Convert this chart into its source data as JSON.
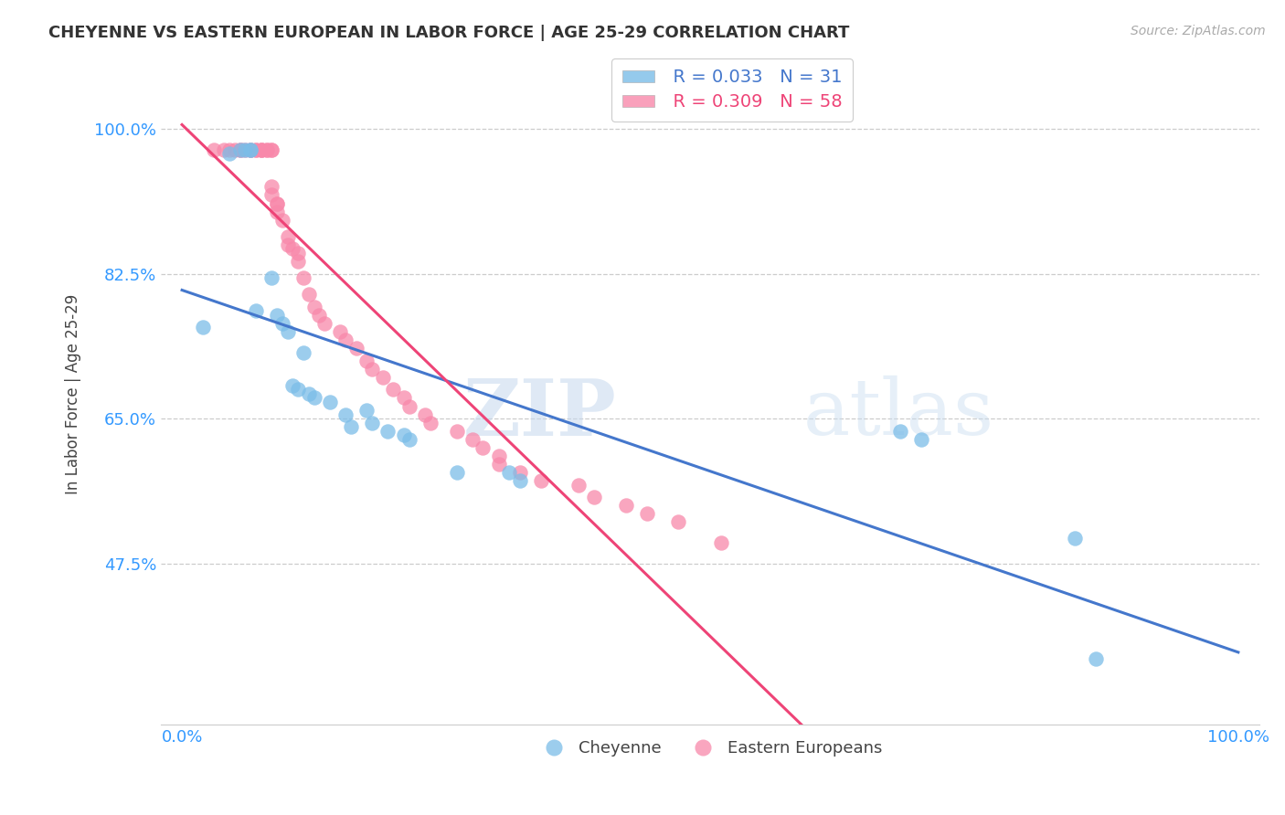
{
  "title": "CHEYENNE VS EASTERN EUROPEAN IN LABOR FORCE | AGE 25-29 CORRELATION CHART",
  "source_text": "Source: ZipAtlas.com",
  "ylabel": "In Labor Force | Age 25-29",
  "xlabel": "",
  "xlim": [
    -0.02,
    1.02
  ],
  "ylim": [
    0.28,
    1.08
  ],
  "yticks": [
    0.475,
    0.65,
    0.825,
    1.0
  ],
  "ytick_labels": [
    "47.5%",
    "65.0%",
    "82.5%",
    "100.0%"
  ],
  "xtick_labels": [
    "0.0%",
    "100.0%"
  ],
  "watermark_zip": "ZIP",
  "watermark_atlas": "atlas",
  "legend_r1": "R = 0.033",
  "legend_n1": "N = 31",
  "legend_r2": "R = 0.309",
  "legend_n2": "N = 58",
  "cheyenne_color": "#7bbde8",
  "eastern_color": "#f888aa",
  "cheyenne_line_color": "#4477cc",
  "eastern_line_color": "#ee4477",
  "background_color": "#ffffff",
  "cheyenne_x": [
    0.02,
    0.045,
    0.055,
    0.06,
    0.065,
    0.065,
    0.07,
    0.085,
    0.09,
    0.095,
    0.1,
    0.105,
    0.11,
    0.115,
    0.12,
    0.125,
    0.14,
    0.155,
    0.16,
    0.175,
    0.18,
    0.195,
    0.21,
    0.215,
    0.26,
    0.31,
    0.32,
    0.68,
    0.7,
    0.845,
    0.865
  ],
  "cheyenne_y": [
    0.76,
    0.97,
    0.975,
    0.975,
    0.975,
    0.975,
    0.78,
    0.82,
    0.775,
    0.765,
    0.755,
    0.69,
    0.685,
    0.73,
    0.68,
    0.675,
    0.67,
    0.655,
    0.64,
    0.66,
    0.645,
    0.635,
    0.63,
    0.625,
    0.585,
    0.585,
    0.575,
    0.635,
    0.625,
    0.505,
    0.36
  ],
  "eastern_x": [
    0.03,
    0.04,
    0.045,
    0.05,
    0.055,
    0.055,
    0.06,
    0.065,
    0.065,
    0.07,
    0.07,
    0.075,
    0.075,
    0.075,
    0.08,
    0.08,
    0.085,
    0.085,
    0.085,
    0.085,
    0.09,
    0.09,
    0.09,
    0.095,
    0.1,
    0.1,
    0.105,
    0.11,
    0.11,
    0.115,
    0.12,
    0.125,
    0.13,
    0.135,
    0.15,
    0.155,
    0.165,
    0.175,
    0.18,
    0.19,
    0.2,
    0.21,
    0.215,
    0.23,
    0.235,
    0.26,
    0.275,
    0.285,
    0.3,
    0.3,
    0.32,
    0.34,
    0.375,
    0.39,
    0.42,
    0.44,
    0.47,
    0.51
  ],
  "eastern_y": [
    0.975,
    0.975,
    0.975,
    0.975,
    0.975,
    0.975,
    0.975,
    0.975,
    0.975,
    0.975,
    0.975,
    0.975,
    0.975,
    0.975,
    0.975,
    0.975,
    0.975,
    0.975,
    0.93,
    0.92,
    0.91,
    0.91,
    0.9,
    0.89,
    0.87,
    0.86,
    0.855,
    0.85,
    0.84,
    0.82,
    0.8,
    0.785,
    0.775,
    0.765,
    0.755,
    0.745,
    0.735,
    0.72,
    0.71,
    0.7,
    0.685,
    0.675,
    0.665,
    0.655,
    0.645,
    0.635,
    0.625,
    0.615,
    0.605,
    0.595,
    0.585,
    0.575,
    0.57,
    0.555,
    0.545,
    0.535,
    0.525,
    0.5
  ]
}
